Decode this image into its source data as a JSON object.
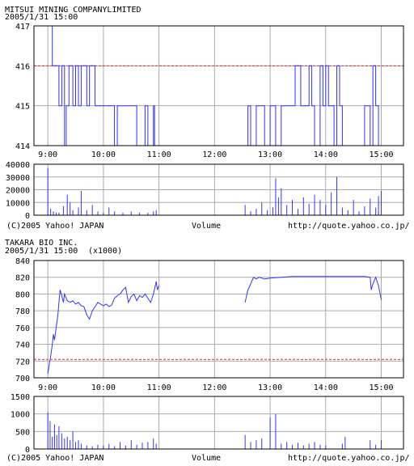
{
  "charts": [
    {
      "title": "MITSUI  MINING  COMPANYLIMITED",
      "datetime": "2005/1/31 15:00",
      "unit_note": "",
      "volume_label": "Volume",
      "copyright": "(C)2005 Yahoo! JAPAN",
      "url": "http://quote.yahoo.co.jp/"
    },
    {
      "title": "TAKARA  BIO  INC.",
      "datetime": "2005/1/31 15:00",
      "unit_note": "(x1000)",
      "volume_label": "Volume",
      "copyright": "(C)2005 Yahoo! JAPAN",
      "url": "http://quote.yahoo.co.jp/"
    }
  ],
  "colors": {
    "line": "#3333ff",
    "reference": "#cc3333",
    "grid": "#aaaaaa",
    "axis": "#000000"
  },
  "chart_data": [
    {
      "type": "line",
      "title": "MITSUI  MINING  COMPANYLIMITED",
      "x_ticks": [
        "9:00",
        "10:00",
        "11:00",
        "12:00",
        "13:00",
        "14:00",
        "15:00"
      ],
      "xlim": [
        8.75,
        15.4
      ],
      "ylim": [
        414,
        417
      ],
      "y_ticks": [
        "414",
        "415",
        "416",
        "417"
      ],
      "reference_line": 416,
      "grid": true,
      "series": [
        {
          "x": [
            9.0,
            9.08,
            9.08,
            9.2,
            9.2,
            9.25,
            9.25,
            9.3,
            9.3,
            9.33,
            9.33,
            9.38,
            9.38,
            9.45,
            9.45,
            9.5,
            9.5,
            9.55,
            9.55,
            9.6,
            9.6,
            9.7,
            9.7,
            9.75,
            9.75,
            9.85,
            9.85,
            10.2,
            10.2,
            10.25,
            10.25,
            10.6,
            10.6,
            10.75,
            10.75,
            10.8,
            10.8,
            10.9,
            10.9,
            10.92,
            10.92,
            11.0,
            12.6,
            12.6,
            12.65,
            12.65,
            12.75,
            12.75,
            12.9,
            12.9,
            13.0,
            13.0,
            13.1,
            13.1,
            13.2,
            13.2,
            13.45,
            13.45,
            13.55,
            13.55,
            13.7,
            13.7,
            13.75,
            13.75,
            13.8,
            13.8,
            13.9,
            13.9,
            13.95,
            13.95,
            14.0,
            14.0,
            14.05,
            14.05,
            14.15,
            14.15,
            14.2,
            14.2,
            14.25,
            14.25,
            14.3,
            14.3,
            14.7,
            14.7,
            14.8,
            14.8,
            14.85,
            14.85,
            14.9,
            14.9,
            14.95,
            14.95,
            15.0
          ],
          "y": [
            417,
            417,
            416,
            416,
            415,
            415,
            416,
            416,
            414,
            414,
            415,
            415,
            416,
            416,
            415,
            415,
            416,
            416,
            415,
            415,
            416,
            416,
            415,
            415,
            416,
            416,
            415,
            415,
            414,
            414,
            415,
            415,
            414,
            414,
            415,
            415,
            414,
            414,
            415,
            415,
            414,
            414,
            414,
            415,
            415,
            414,
            414,
            415,
            415,
            414,
            414,
            415,
            415,
            414,
            414,
            415,
            415,
            416,
            416,
            415,
            415,
            416,
            416,
            415,
            415,
            414,
            414,
            416,
            416,
            415,
            415,
            416,
            416,
            415,
            415,
            414,
            414,
            416,
            416,
            415,
            415,
            414,
            414,
            415,
            415,
            414,
            414,
            416,
            416,
            415,
            415,
            414,
            414
          ]
        }
      ],
      "volume": {
        "ylim": [
          0,
          40000
        ],
        "y_ticks": [
          "0",
          "10000",
          "20000",
          "30000",
          "40000"
        ],
        "x": [
          9.0,
          9.05,
          9.1,
          9.15,
          9.2,
          9.28,
          9.35,
          9.4,
          9.45,
          9.55,
          9.6,
          9.7,
          9.8,
          9.9,
          10.0,
          10.1,
          10.2,
          10.35,
          10.5,
          10.65,
          10.8,
          10.9,
          10.95,
          12.55,
          12.65,
          12.75,
          12.85,
          12.95,
          13.05,
          13.1,
          13.15,
          13.2,
          13.3,
          13.4,
          13.5,
          13.6,
          13.7,
          13.8,
          13.9,
          14.0,
          14.1,
          14.2,
          14.3,
          14.4,
          14.5,
          14.6,
          14.7,
          14.8,
          14.9,
          14.95,
          15.0
        ],
        "values": [
          37000,
          5000,
          3000,
          2000,
          2000,
          7000,
          16000,
          10000,
          4000,
          6000,
          19000,
          4000,
          8000,
          3000,
          2000,
          6000,
          3000,
          2000,
          3000,
          2000,
          2000,
          3000,
          4000,
          8000,
          3000,
          5000,
          10000,
          4000,
          6000,
          29000,
          14000,
          21000,
          8000,
          12000,
          5000,
          14000,
          9000,
          16000,
          12000,
          8000,
          18000,
          30000,
          6000,
          4000,
          12000,
          3000,
          7000,
          13000,
          6000,
          15000,
          19000
        ]
      }
    },
    {
      "type": "line",
      "title": "TAKARA  BIO  INC.",
      "x_ticks": [
        "9:00",
        "10:00",
        "11:00",
        "12:00",
        "13:00",
        "14:00",
        "15:00"
      ],
      "xlim": [
        8.75,
        15.4
      ],
      "ylim": [
        700,
        840
      ],
      "y_ticks": [
        "700",
        "720",
        "740",
        "760",
        "780",
        "800",
        "820",
        "840"
      ],
      "reference_line": 722,
      "grid": true,
      "series": [
        {
          "x": [
            9.0,
            9.03,
            9.05,
            9.08,
            9.1,
            9.12,
            9.15,
            9.18,
            9.2,
            9.22,
            9.25,
            9.28,
            9.3,
            9.33,
            9.35,
            9.4,
            9.45,
            9.5,
            9.55,
            9.6,
            9.65,
            9.7,
            9.75,
            9.8,
            9.85,
            9.9,
            9.95,
            10.0,
            10.05,
            10.1,
            10.15,
            10.2,
            10.25,
            10.3,
            10.35,
            10.4,
            10.45,
            10.5,
            10.55,
            10.6,
            10.65,
            10.7,
            10.75,
            10.8,
            10.85,
            10.9,
            10.95,
            10.97,
            11.0
          ],
          "y": [
            705,
            718,
            725,
            740,
            752,
            745,
            760,
            775,
            790,
            805,
            798,
            790,
            800,
            795,
            792,
            790,
            792,
            788,
            790,
            786,
            785,
            775,
            770,
            780,
            785,
            790,
            788,
            786,
            788,
            785,
            787,
            795,
            798,
            800,
            805,
            808,
            790,
            797,
            800,
            792,
            798,
            796,
            800,
            795,
            790,
            800,
            815,
            805,
            810
          ]
        },
        {
          "x": [
            12.55,
            12.6,
            12.65,
            12.7,
            12.75,
            12.8,
            12.9,
            13.0,
            13.2,
            13.4,
            13.6,
            14.0,
            14.4,
            14.7,
            14.8,
            14.82,
            14.85,
            14.9,
            14.95,
            15.0
          ],
          "y": [
            790,
            805,
            812,
            820,
            818,
            820,
            818,
            819,
            820,
            821,
            821,
            821,
            821,
            821,
            820,
            805,
            812,
            820,
            810,
            793
          ]
        }
      ],
      "volume": {
        "ylim": [
          0,
          1500
        ],
        "y_ticks": [
          "0",
          "500",
          "1000",
          "1500"
        ],
        "x": [
          9.0,
          9.04,
          9.08,
          9.12,
          9.16,
          9.2,
          9.25,
          9.3,
          9.35,
          9.4,
          9.45,
          9.5,
          9.55,
          9.6,
          9.7,
          9.8,
          9.9,
          10.0,
          10.1,
          10.2,
          10.3,
          10.4,
          10.5,
          10.6,
          10.7,
          10.8,
          10.9,
          10.95,
          12.55,
          12.65,
          12.75,
          12.85,
          13.0,
          13.1,
          13.2,
          13.3,
          13.4,
          13.5,
          13.6,
          13.7,
          13.8,
          13.9,
          14.0,
          14.3,
          14.35,
          14.8,
          14.9,
          15.0
        ],
        "values": [
          1050,
          800,
          350,
          700,
          400,
          650,
          450,
          300,
          350,
          250,
          500,
          200,
          250,
          150,
          100,
          80,
          120,
          100,
          150,
          80,
          200,
          100,
          250,
          120,
          180,
          200,
          300,
          150,
          400,
          200,
          250,
          300,
          900,
          1000,
          150,
          200,
          120,
          180,
          100,
          150,
          200,
          120,
          100,
          150,
          350,
          250,
          120,
          250
        ]
      }
    }
  ]
}
